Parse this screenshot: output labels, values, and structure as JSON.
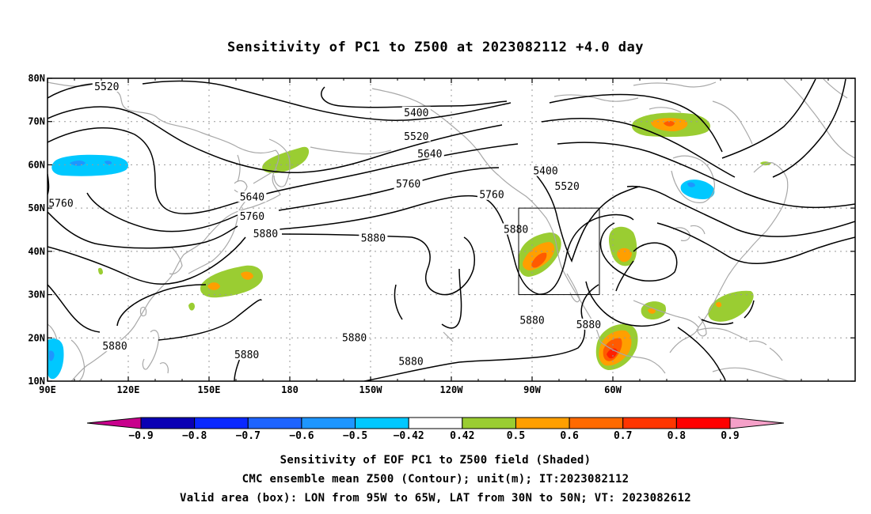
{
  "title": "Sensitivity of PC1 to Z500 at 2023082112 +4.0 day",
  "map": {
    "lat_labels": [
      "80N",
      "70N",
      "60N",
      "50N",
      "40N",
      "30N",
      "20N",
      "10N"
    ],
    "lon_labels": [
      "90E",
      "120E",
      "150E",
      "180",
      "150W",
      "120W",
      "90W",
      "60W"
    ],
    "contour_labels": [
      {
        "text": "5520",
        "lon": 112,
        "lat": 78
      },
      {
        "text": "5400",
        "lon": -133,
        "lat": 72
      },
      {
        "text": "5520",
        "lon": -133,
        "lat": 66.5
      },
      {
        "text": "5640",
        "lon": -128,
        "lat": 62.5
      },
      {
        "text": "5400",
        "lon": -85,
        "lat": 58.5
      },
      {
        "text": "5520",
        "lon": -77,
        "lat": 55
      },
      {
        "text": "5760",
        "lon": -136,
        "lat": 55.5
      },
      {
        "text": "5760",
        "lon": -105,
        "lat": 53
      },
      {
        "text": "5640",
        "lon": 166,
        "lat": 52.5
      },
      {
        "text": "5760",
        "lon": 166,
        "lat": 48
      },
      {
        "text": "5760",
        "lon": 95,
        "lat": 51
      },
      {
        "text": "5880",
        "lon": 171,
        "lat": 44
      },
      {
        "text": "5880",
        "lon": -149,
        "lat": 43
      },
      {
        "text": "5880",
        "lon": -96,
        "lat": 45
      },
      {
        "text": "5880",
        "lon": 115,
        "lat": 18
      },
      {
        "text": "5880",
        "lon": 164,
        "lat": 16
      },
      {
        "text": "5880",
        "lon": -156,
        "lat": 20
      },
      {
        "text": "5880",
        "lon": -135,
        "lat": 14.5
      },
      {
        "text": "5880",
        "lon": -90,
        "lat": 24
      },
      {
        "text": "5880",
        "lon": -69,
        "lat": 23
      }
    ],
    "valid_box": {
      "lon_min": -95,
      "lon_max": -65,
      "lat_min": 30,
      "lat_max": 50
    }
  },
  "colorbar": {
    "labels": [
      "−0.9",
      "−0.8",
      "−0.7",
      "−0.6",
      "−0.5",
      "−0.42",
      "0.42",
      "0.5",
      "0.6",
      "0.7",
      "0.8",
      "0.9"
    ],
    "colors": [
      "#0a00b4",
      "#0a28ff",
      "#1e64ff",
      "#1e96ff",
      "#00c8ff",
      "#ffffff",
      "#9acd32",
      "#ff9f00",
      "#ff6a00",
      "#ff3500",
      "#ff0000"
    ],
    "low_end_color": "#c8008c",
    "high_end_color": "#f5a0c8"
  },
  "shading_colors": {
    "green": "#9acd32",
    "orange": "#ff9f00",
    "red_orange": "#ff5a00",
    "red": "#ff2000",
    "cyan": "#00c8ff",
    "blue": "#1e96ff"
  },
  "footer": {
    "line1": "Sensitivity of EOF PC1 to Z500 field (Shaded)",
    "line2": "CMC ensemble mean Z500 (Contour); unit(m); IT:2023082112",
    "line3": "Valid area (box): LON from 95W to 65W, LAT from 30N to 50N; VT: 2023082612"
  }
}
